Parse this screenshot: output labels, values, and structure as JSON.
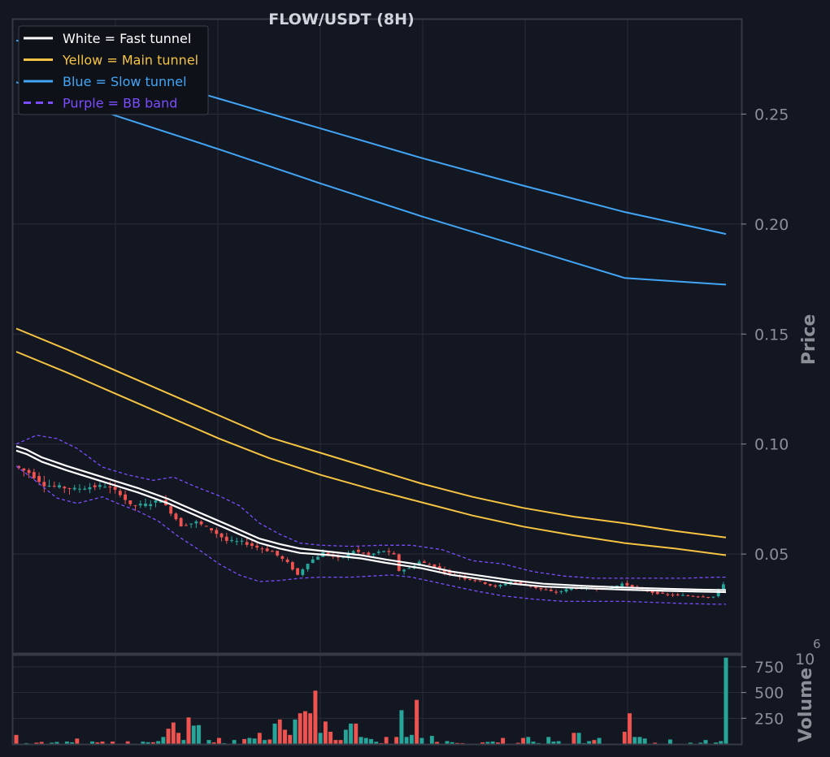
{
  "chart_data": {
    "type": "candlestick",
    "title": "FLOW/USDT (8H)",
    "colors": {
      "background": "#131722",
      "grid": "#2a2e39",
      "frame": "#363a45",
      "tick_text": "#8a8f98",
      "up": "#26a69a",
      "down": "#ef5350",
      "fast_tunnel": "#ffffff",
      "main_tunnel": "#f6c343",
      "slow_tunnel": "#42a5f5",
      "bb_band": "#7c4dff"
    },
    "legend": {
      "placement": "top-left",
      "entries": [
        {
          "label": "White = Fast tunnel",
          "color": "#ffffff",
          "style": "solid"
        },
        {
          "label": "Yellow = Main tunnel",
          "color": "#f6c343",
          "style": "solid"
        },
        {
          "label": "Blue = Slow tunnel",
          "color": "#42a5f5",
          "style": "solid"
        },
        {
          "label": "Purple = BB band",
          "color": "#7c4dff",
          "style": "dashed"
        }
      ]
    },
    "price_panel": {
      "ylabel": "Price",
      "ylim": [
        0.005,
        0.293
      ],
      "yticks": [
        0.05,
        0.1,
        0.15,
        0.2,
        0.25
      ],
      "ytick_labels": [
        "0.05",
        "0.10",
        "0.15",
        "0.20",
        "0.25"
      ]
    },
    "volume_panel": {
      "ylabel": "Volume",
      "multiplier_label": "10",
      "multiplier_exp": "6",
      "ylim": [
        0,
        860
      ],
      "yticks": [
        250,
        500,
        750
      ],
      "ytick_labels": [
        "250",
        "500",
        "750"
      ]
    },
    "x_count": 140,
    "series": {
      "fast_tunnel_upper": [
        [
          0,
          0.099
        ],
        [
          2,
          0.0975
        ],
        [
          5,
          0.094
        ],
        [
          10,
          0.09
        ],
        [
          17,
          0.085
        ],
        [
          24,
          0.08
        ],
        [
          30,
          0.075
        ],
        [
          36,
          0.069
        ],
        [
          42,
          0.063
        ],
        [
          48,
          0.057
        ],
        [
          52,
          0.0545
        ],
        [
          56,
          0.0525
        ],
        [
          62,
          0.051
        ],
        [
          68,
          0.0495
        ],
        [
          73,
          0.0475
        ],
        [
          80,
          0.045
        ],
        [
          86,
          0.042
        ],
        [
          92,
          0.04
        ],
        [
          98,
          0.038
        ],
        [
          104,
          0.0365
        ],
        [
          112,
          0.0355
        ],
        [
          120,
          0.0348
        ],
        [
          128,
          0.0342
        ],
        [
          135,
          0.0338
        ],
        [
          140,
          0.0336
        ]
      ],
      "fast_tunnel_lower": [
        [
          0,
          0.097
        ],
        [
          2,
          0.0955
        ],
        [
          5,
          0.092
        ],
        [
          10,
          0.088
        ],
        [
          17,
          0.083
        ],
        [
          24,
          0.078
        ],
        [
          30,
          0.073
        ],
        [
          36,
          0.067
        ],
        [
          42,
          0.061
        ],
        [
          48,
          0.055
        ],
        [
          52,
          0.0525
        ],
        [
          56,
          0.0505
        ],
        [
          62,
          0.0495
        ],
        [
          68,
          0.048
        ],
        [
          73,
          0.046
        ],
        [
          80,
          0.0435
        ],
        [
          86,
          0.0405
        ],
        [
          92,
          0.0385
        ],
        [
          98,
          0.0365
        ],
        [
          104,
          0.0352
        ],
        [
          112,
          0.0345
        ],
        [
          120,
          0.0338
        ],
        [
          128,
          0.0333
        ],
        [
          135,
          0.0329
        ],
        [
          140,
          0.0327
        ]
      ],
      "main_tunnel_upper": [
        [
          0,
          0.1525
        ],
        [
          10,
          0.143
        ],
        [
          20,
          0.133
        ],
        [
          30,
          0.123
        ],
        [
          40,
          0.113
        ],
        [
          50,
          0.103
        ],
        [
          60,
          0.096
        ],
        [
          70,
          0.089
        ],
        [
          80,
          0.082
        ],
        [
          90,
          0.076
        ],
        [
          100,
          0.071
        ],
        [
          110,
          0.067
        ],
        [
          120,
          0.064
        ],
        [
          130,
          0.0605
        ],
        [
          140,
          0.0575
        ]
      ],
      "main_tunnel_lower": [
        [
          0,
          0.142
        ],
        [
          10,
          0.1325
        ],
        [
          20,
          0.1225
        ],
        [
          30,
          0.1125
        ],
        [
          40,
          0.1025
        ],
        [
          50,
          0.0935
        ],
        [
          60,
          0.086
        ],
        [
          70,
          0.0795
        ],
        [
          80,
          0.0735
        ],
        [
          90,
          0.0675
        ],
        [
          100,
          0.0625
        ],
        [
          110,
          0.0585
        ],
        [
          120,
          0.055
        ],
        [
          130,
          0.0525
        ],
        [
          140,
          0.0495
        ]
      ],
      "slow_tunnel_upper": [
        [
          0,
          0.2835
        ],
        [
          20,
          0.2705
        ],
        [
          40,
          0.257
        ],
        [
          60,
          0.2435
        ],
        [
          80,
          0.23
        ],
        [
          100,
          0.2175
        ],
        [
          120,
          0.2055
        ],
        [
          140,
          0.1955
        ]
      ],
      "slow_tunnel_lower": [
        [
          0,
          0.2645
        ],
        [
          20,
          0.249
        ],
        [
          40,
          0.234
        ],
        [
          60,
          0.2185
        ],
        [
          80,
          0.2035
        ],
        [
          100,
          0.1895
        ],
        [
          120,
          0.1755
        ],
        [
          140,
          0.1725
        ]
      ],
      "bb_upper": [
        [
          0,
          0.1
        ],
        [
          4,
          0.104
        ],
        [
          8,
          0.1025
        ],
        [
          12,
          0.098
        ],
        [
          17,
          0.0895
        ],
        [
          22,
          0.086
        ],
        [
          27,
          0.0835
        ],
        [
          31,
          0.085
        ],
        [
          35,
          0.081
        ],
        [
          40,
          0.0765
        ],
        [
          44,
          0.072
        ],
        [
          48,
          0.064
        ],
        [
          52,
          0.059
        ],
        [
          56,
          0.055
        ],
        [
          60,
          0.054
        ],
        [
          66,
          0.0535
        ],
        [
          72,
          0.054
        ],
        [
          78,
          0.054
        ],
        [
          84,
          0.052
        ],
        [
          90,
          0.047
        ],
        [
          96,
          0.0455
        ],
        [
          102,
          0.042
        ],
        [
          108,
          0.04
        ],
        [
          114,
          0.039
        ],
        [
          120,
          0.039
        ],
        [
          126,
          0.039
        ],
        [
          132,
          0.039
        ],
        [
          138,
          0.0395
        ],
        [
          140,
          0.0395
        ]
      ],
      "bb_lower": [
        [
          0,
          0.09
        ],
        [
          4,
          0.083
        ],
        [
          8,
          0.0755
        ],
        [
          12,
          0.073
        ],
        [
          17,
          0.076
        ],
        [
          20,
          0.073
        ],
        [
          24,
          0.0695
        ],
        [
          28,
          0.065
        ],
        [
          32,
          0.058
        ],
        [
          36,
          0.052
        ],
        [
          40,
          0.0455
        ],
        [
          44,
          0.0405
        ],
        [
          48,
          0.0375
        ],
        [
          52,
          0.038
        ],
        [
          56,
          0.039
        ],
        [
          60,
          0.0395
        ],
        [
          66,
          0.0395
        ],
        [
          70,
          0.04
        ],
        [
          74,
          0.0405
        ],
        [
          78,
          0.0395
        ],
        [
          82,
          0.0375
        ],
        [
          86,
          0.0355
        ],
        [
          90,
          0.0335
        ],
        [
          96,
          0.031
        ],
        [
          102,
          0.0295
        ],
        [
          108,
          0.0285
        ],
        [
          114,
          0.0285
        ],
        [
          120,
          0.0285
        ],
        [
          126,
          0.028
        ],
        [
          132,
          0.0275
        ],
        [
          138,
          0.0272
        ],
        [
          140,
          0.0272
        ]
      ],
      "price_path": [
        [
          0,
          0.09
        ],
        [
          3,
          0.087
        ],
        [
          6,
          0.0815
        ],
        [
          9,
          0.0805
        ],
        [
          12,
          0.0795
        ],
        [
          15,
          0.0805
        ],
        [
          18,
          0.081
        ],
        [
          21,
          0.0775
        ],
        [
          23,
          0.072
        ],
        [
          26,
          0.0725
        ],
        [
          29,
          0.0745
        ],
        [
          31,
          0.069
        ],
        [
          33,
          0.063
        ],
        [
          36,
          0.0645
        ],
        [
          39,
          0.061
        ],
        [
          42,
          0.056
        ],
        [
          45,
          0.0555
        ],
        [
          48,
          0.053
        ],
        [
          51,
          0.051
        ],
        [
          54,
          0.046
        ],
        [
          56,
          0.0405
        ],
        [
          58,
          0.046
        ],
        [
          61,
          0.0505
        ],
        [
          64,
          0.048
        ],
        [
          67,
          0.0515
        ],
        [
          70,
          0.0495
        ],
        [
          73,
          0.0515
        ],
        [
          75,
          0.0495
        ],
        [
          76,
          0.0425
        ],
        [
          78,
          0.0435
        ],
        [
          80,
          0.0465
        ],
        [
          83,
          0.0445
        ],
        [
          86,
          0.041
        ],
        [
          89,
          0.039
        ],
        [
          92,
          0.0375
        ],
        [
          95,
          0.035
        ],
        [
          98,
          0.0375
        ],
        [
          101,
          0.036
        ],
        [
          104,
          0.034
        ],
        [
          107,
          0.0325
        ],
        [
          110,
          0.0345
        ],
        [
          114,
          0.0345
        ],
        [
          117,
          0.034
        ],
        [
          120,
          0.0365
        ],
        [
          123,
          0.0345
        ],
        [
          126,
          0.0325
        ],
        [
          129,
          0.0315
        ],
        [
          132,
          0.0312
        ],
        [
          135,
          0.0308
        ],
        [
          138,
          0.0306
        ],
        [
          140,
          0.0365
        ]
      ],
      "volume_spikes": [
        [
          0,
          90
        ],
        [
          12,
          55
        ],
        [
          28,
          30
        ],
        [
          29,
          70
        ],
        [
          30,
          150
        ],
        [
          31,
          210
        ],
        [
          32,
          110
        ],
        [
          33,
          40
        ],
        [
          34,
          260
        ],
        [
          35,
          180
        ],
        [
          36,
          185
        ],
        [
          38,
          40
        ],
        [
          40,
          60
        ],
        [
          43,
          40
        ],
        [
          45,
          50
        ],
        [
          46,
          60
        ],
        [
          47,
          55
        ],
        [
          48,
          110
        ],
        [
          49,
          40
        ],
        [
          50,
          45
        ],
        [
          51,
          200
        ],
        [
          52,
          240
        ],
        [
          53,
          140
        ],
        [
          54,
          90
        ],
        [
          55,
          240
        ],
        [
          56,
          300
        ],
        [
          57,
          320
        ],
        [
          58,
          300
        ],
        [
          59,
          520
        ],
        [
          60,
          110
        ],
        [
          61,
          220
        ],
        [
          62,
          120
        ],
        [
          63,
          40
        ],
        [
          64,
          40
        ],
        [
          65,
          140
        ],
        [
          66,
          200
        ],
        [
          67,
          200
        ],
        [
          68,
          70
        ],
        [
          69,
          60
        ],
        [
          70,
          50
        ],
        [
          73,
          70
        ],
        [
          75,
          70
        ],
        [
          76,
          330
        ],
        [
          77,
          70
        ],
        [
          78,
          90
        ],
        [
          79,
          430
        ],
        [
          80,
          60
        ],
        [
          82,
          80
        ],
        [
          85,
          30
        ],
        [
          96,
          60
        ],
        [
          100,
          60
        ],
        [
          101,
          70
        ],
        [
          105,
          70
        ],
        [
          110,
          110
        ],
        [
          111,
          110
        ],
        [
          114,
          40
        ],
        [
          115,
          60
        ],
        [
          120,
          120
        ],
        [
          121,
          300
        ],
        [
          122,
          70
        ],
        [
          123,
          70
        ],
        [
          124,
          55
        ],
        [
          129,
          45
        ],
        [
          136,
          40
        ],
        [
          139,
          30
        ],
        [
          140,
          840
        ]
      ]
    }
  }
}
